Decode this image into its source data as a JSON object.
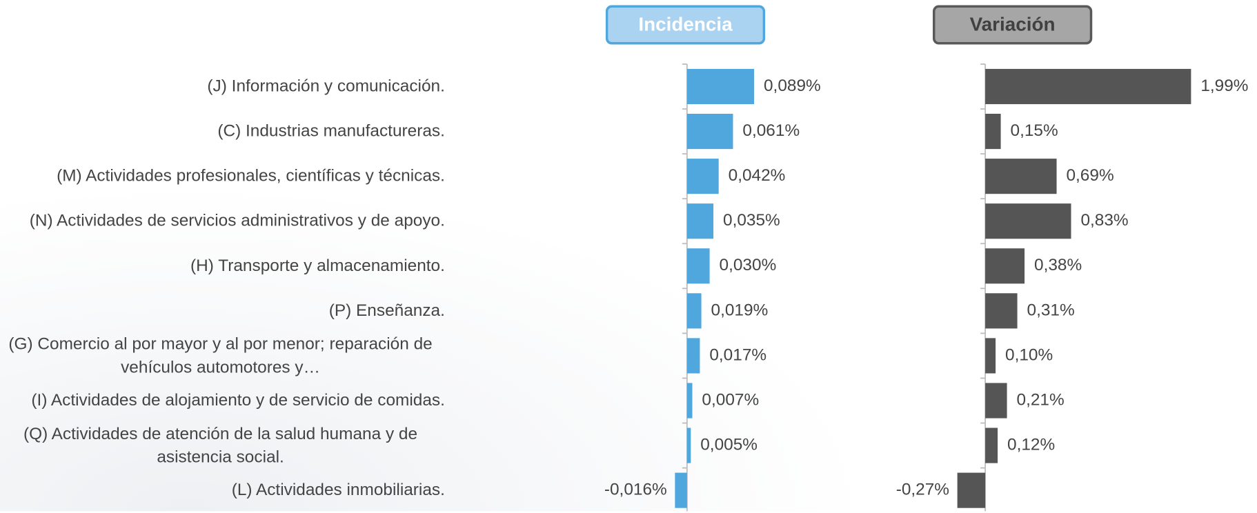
{
  "chart_data": [
    {
      "type": "barh",
      "title": "Incidencia",
      "categories": [
        "(J) Información y comunicación.",
        "(C) Industrias manufactureras.",
        "(M) Actividades profesionales, científicas y técnicas.",
        "(N) Actividades de servicios administrativos y de apoyo.",
        "(H) Transporte y almacenamiento.",
        "(P) Enseñanza.",
        "(G) Comercio al por mayor y al por menor; reparación de vehículos automotores y…",
        "(I) Actividades de alojamiento y de servicio de comidas.",
        "(Q) Actividades de atención de la salud humana y de asistencia social.",
        "(L) Actividades inmobiliarias."
      ],
      "values": [
        0.089,
        0.061,
        0.042,
        0.035,
        0.03,
        0.019,
        0.017,
        0.007,
        0.005,
        -0.016
      ],
      "value_labels": [
        "0,089%",
        "0,061%",
        "0,042%",
        "0,035%",
        "0,030%",
        "0,019%",
        "0,017%",
        "0,007%",
        "0,005%",
        "-0,016%"
      ],
      "color": "#4fa7de",
      "xlim": [
        -0.1,
        0.1
      ]
    },
    {
      "type": "barh",
      "title": "Variación",
      "values": [
        1.99,
        0.15,
        0.69,
        0.83,
        0.38,
        0.31,
        0.1,
        0.21,
        0.12,
        -0.27
      ],
      "value_labels": [
        "1,99%",
        "0,15%",
        "0,69%",
        "0,83%",
        "0,38%",
        "0,31%",
        "0,10%",
        "0,21%",
        "0,12%",
        "-0,27%"
      ],
      "color": "#555555",
      "xlim": [
        -2,
        2
      ]
    }
  ]
}
